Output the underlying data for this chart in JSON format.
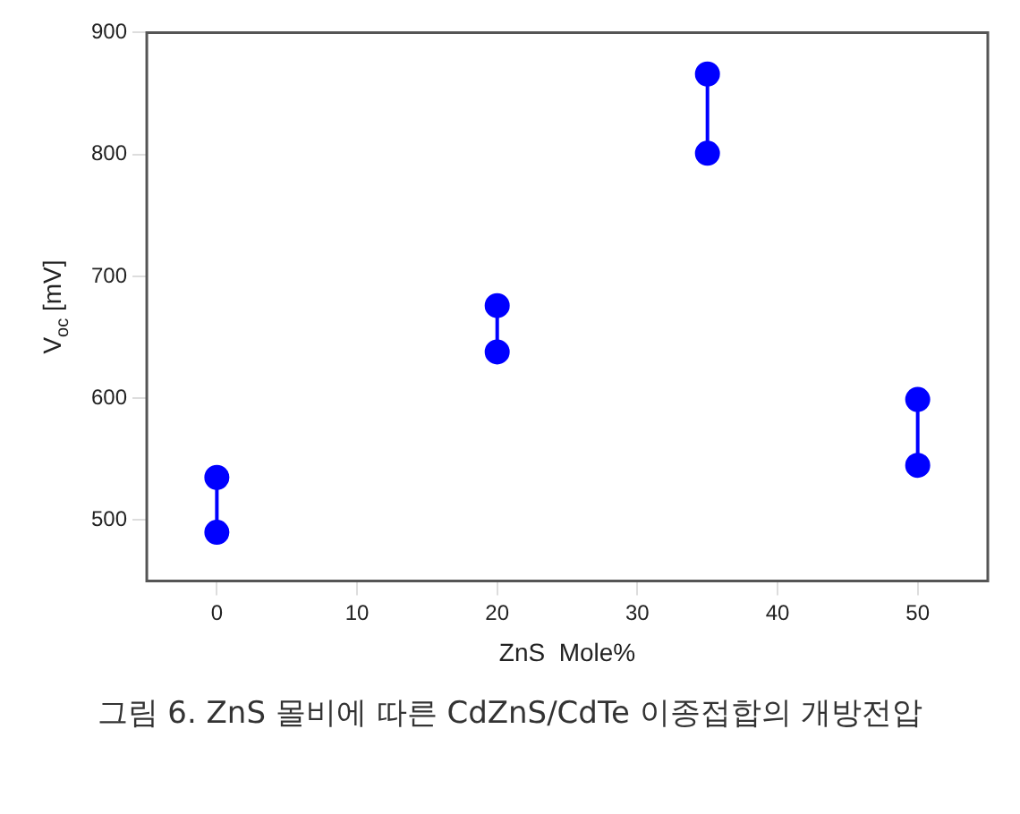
{
  "chart_data": {
    "type": "line",
    "xlabel": "ZnS  Mole%",
    "ylabel": "V$_{oc}$ [mV]",
    "annotations": [
      "그림 6. ZnS 몰비에 따른 CdZnS/CdTe 이종접합의 개방전압"
    ],
    "series": [
      {
        "x": [
          0,
          0
        ],
        "values": [
          490,
          535
        ],
        "color": "#0000ff"
      },
      {
        "x": [
          20,
          20
        ],
        "values": [
          638,
          676
        ],
        "color": "#0000ff"
      },
      {
        "x": [
          35,
          35
        ],
        "values": [
          801,
          866
        ],
        "color": "#0000ff"
      },
      {
        "x": [
          50,
          50
        ],
        "values": [
          545,
          599
        ],
        "color": "#0000ff"
      }
    ],
    "marker": "circle",
    "line_style": "solid",
    "xlim": [
      -5,
      55
    ],
    "xticks": [
      0,
      10,
      20,
      30,
      40,
      50
    ],
    "ylim": [
      450,
      900
    ],
    "yticks": [
      500,
      600,
      700,
      800,
      900
    ],
    "grid": false,
    "legend": false
  }
}
